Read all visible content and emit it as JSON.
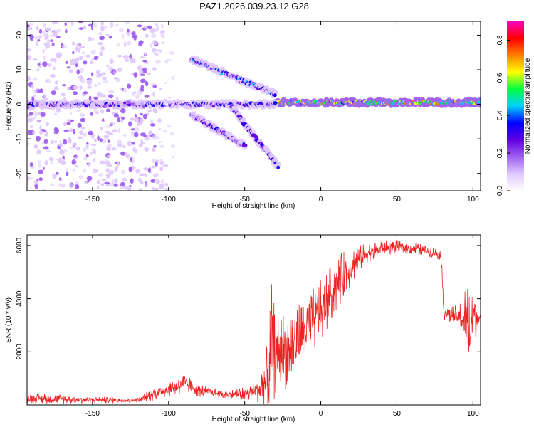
{
  "title": "PAZ1.2026.039.23.12.G28",
  "colors": {
    "snr_line": "#ee2222",
    "colormap": [
      "#ffffff",
      "#e0c8ff",
      "#a060f0",
      "#6000e0",
      "#0000ff",
      "#00d0ff",
      "#00ff40",
      "#ffff00",
      "#ff8000",
      "#ff0000",
      "#ff00c0"
    ]
  },
  "chart_data": [
    {
      "type": "heatmap",
      "title": "PAZ1.2026.039.23.12.G28",
      "xlabel": "Height of straight line (km)",
      "ylabel": "Frequency (Hz)",
      "xlim": [
        -193,
        105
      ],
      "ylim": [
        -25,
        24
      ],
      "xticks": [
        -150,
        -100,
        -50,
        0,
        50,
        100
      ],
      "yticks": [
        -20,
        -10,
        0,
        10,
        20
      ],
      "colorbar": {
        "label": "Normalized spectral amplitude",
        "range": [
          0,
          0.9
        ],
        "ticks": [
          "0.0",
          "0.2",
          "0.4",
          "0.6",
          "0.8"
        ]
      },
      "features": [
        {
          "name": "main_tone",
          "x_range": [
            -30,
            105
          ],
          "freq": 0.5,
          "amplitude": 0.55,
          "description": "strong narrow band near 0 Hz"
        },
        {
          "name": "lower_band",
          "x_range": [
            -193,
            -30
          ],
          "freq": 0,
          "amplitude": 0.3
        },
        {
          "name": "upper_branch",
          "x_range": [
            -85,
            -30
          ],
          "freq_start": 13,
          "freq_end": 3,
          "amplitude": 0.35
        },
        {
          "name": "lower_branch",
          "x_range": [
            -60,
            -28
          ],
          "freq_start": 0,
          "freq_end": -18,
          "amplitude": 0.3
        },
        {
          "name": "side_branch",
          "x_range": [
            -85,
            -50
          ],
          "freq_start": -3,
          "freq_end": -12,
          "amplitude": 0.25
        },
        {
          "name": "noise",
          "x_range": [
            -193,
            -110
          ],
          "freq_range": [
            -25,
            24
          ],
          "amplitude": 0.12
        }
      ]
    },
    {
      "type": "line",
      "xlabel": "Height of straight line (km)",
      "ylabel": "SNR (10 * v/v)",
      "xlim": [
        -193,
        105
      ],
      "ylim": [
        0,
        6400
      ],
      "xticks": [
        -150,
        -100,
        -50,
        0,
        50,
        100
      ],
      "yticks": [
        2000,
        4000,
        6000
      ],
      "series": [
        {
          "name": "SNR",
          "x": [
            -193,
            -180,
            -160,
            -140,
            -120,
            -111,
            -100,
            -90,
            -85,
            -80,
            -70,
            -60,
            -50,
            -40,
            -35,
            -32,
            -30,
            -25,
            -20,
            -15,
            -10,
            -5,
            0,
            5,
            10,
            15,
            20,
            25,
            30,
            40,
            50,
            60,
            70,
            79,
            81,
            85,
            90,
            95,
            98,
            100,
            103,
            105
          ],
          "mean": [
            250,
            240,
            200,
            180,
            170,
            400,
            600,
            800,
            700,
            550,
            450,
            380,
            420,
            600,
            1000,
            2300,
            1800,
            2000,
            2200,
            2500,
            2800,
            3200,
            3500,
            4000,
            4500,
            4900,
            5200,
            5500,
            5700,
            5900,
            5950,
            5900,
            5800,
            5650,
            3500,
            3400,
            3300,
            3200,
            2600,
            3400,
            3300,
            3300
          ],
          "spread": [
            200,
            200,
            150,
            120,
            100,
            250,
            300,
            400,
            300,
            250,
            200,
            180,
            300,
            500,
            1400,
            2500,
            1500,
            1500,
            1500,
            1400,
            1300,
            1200,
            1200,
            1100,
            1000,
            900,
            700,
            500,
            400,
            300,
            250,
            250,
            200,
            200,
            300,
            400,
            400,
            1300,
            2400,
            1600,
            400,
            300
          ]
        }
      ]
    }
  ]
}
